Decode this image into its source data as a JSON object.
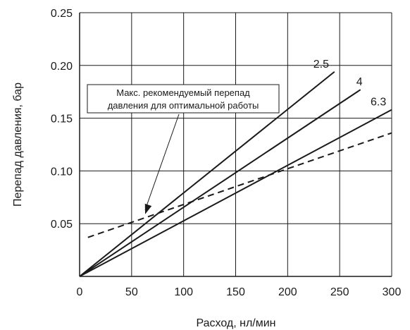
{
  "chart_data": {
    "type": "line",
    "xlabel": "Расход, нл/мин",
    "ylabel": "Перепад давления, бар",
    "xlim": [
      0,
      300
    ],
    "ylim": [
      0,
      0.25
    ],
    "grid": true,
    "x_ticks": [
      0,
      50,
      100,
      150,
      200,
      250,
      300
    ],
    "x_tick_labels": [
      "0",
      "50",
      "100",
      "150",
      "200",
      "250",
      "300"
    ],
    "y_ticks": [
      0.05,
      0.1,
      0.15,
      0.2,
      0.25
    ],
    "y_tick_labels": [
      "0.05",
      "0.10",
      "0.15",
      "0.20",
      "0.25"
    ],
    "series": [
      {
        "name": "2.5",
        "style": "solid",
        "color": "#1a1a1a",
        "x": [
          0,
          245
        ],
        "y": [
          0,
          0.194
        ]
      },
      {
        "name": "4",
        "style": "solid",
        "color": "#1a1a1a",
        "x": [
          0,
          270
        ],
        "y": [
          0,
          0.177
        ]
      },
      {
        "name": "6.3",
        "style": "solid",
        "color": "#1a1a1a",
        "x": [
          0,
          300
        ],
        "y": [
          0,
          0.158
        ]
      },
      {
        "name": "",
        "style": "dashed",
        "color": "#1a1a1a",
        "x": [
          8,
          300
        ],
        "y": [
          0.037,
          0.136
        ]
      }
    ],
    "annotation": {
      "lines": [
        "Макс. рекомендуемый перепад",
        "давления для оптимальной работы"
      ],
      "arrow_target": {
        "x": 63,
        "y": 0.059
      }
    }
  }
}
